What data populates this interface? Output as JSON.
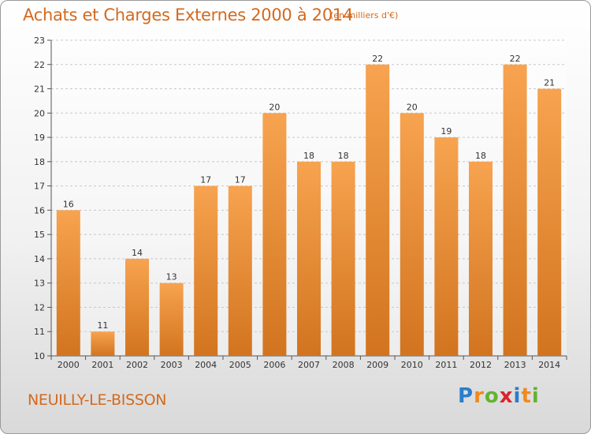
{
  "title": "Achats et Charges Externes 2000 à 2014",
  "subtitle": "(en milliers d'€)",
  "place_name": "NEUILLY-LE-BISSON",
  "logo": {
    "text": "Proxiti",
    "letters": [
      {
        "ch": "P",
        "color": "#2a7ecb"
      },
      {
        "ch": "r",
        "color": "#f08a1c"
      },
      {
        "ch": "o",
        "color": "#63b330"
      },
      {
        "ch": "x",
        "color": "#d9232d"
      },
      {
        "ch": "i",
        "color": "#2a7ecb"
      },
      {
        "ch": "t",
        "color": "#f08a1c"
      },
      {
        "ch": "i",
        "color": "#63b330"
      }
    ]
  },
  "colors": {
    "title": "#d4691e",
    "bar_top": "#f7a34f",
    "bar_bottom": "#d2741f",
    "grid": "#c8c8c8"
  },
  "chart_data": {
    "type": "bar",
    "title": "Achats et Charges Externes 2000 à 2014",
    "subtitle": "(en milliers d'€)",
    "categories": [
      "2000",
      "2001",
      "2002",
      "2003",
      "2004",
      "2005",
      "2006",
      "2007",
      "2008",
      "2009",
      "2010",
      "2011",
      "2012",
      "2013",
      "2014"
    ],
    "values": [
      16,
      11,
      14,
      13,
      17,
      17,
      20,
      18,
      18,
      22,
      20,
      19,
      18,
      22,
      21
    ],
    "ylim": [
      10,
      23
    ],
    "yticks": [
      10,
      11,
      12,
      13,
      14,
      15,
      16,
      17,
      18,
      19,
      20,
      21,
      22,
      23
    ],
    "xlabel": "",
    "ylabel": "",
    "grid": "horizontal dashed",
    "data_labels": true
  }
}
